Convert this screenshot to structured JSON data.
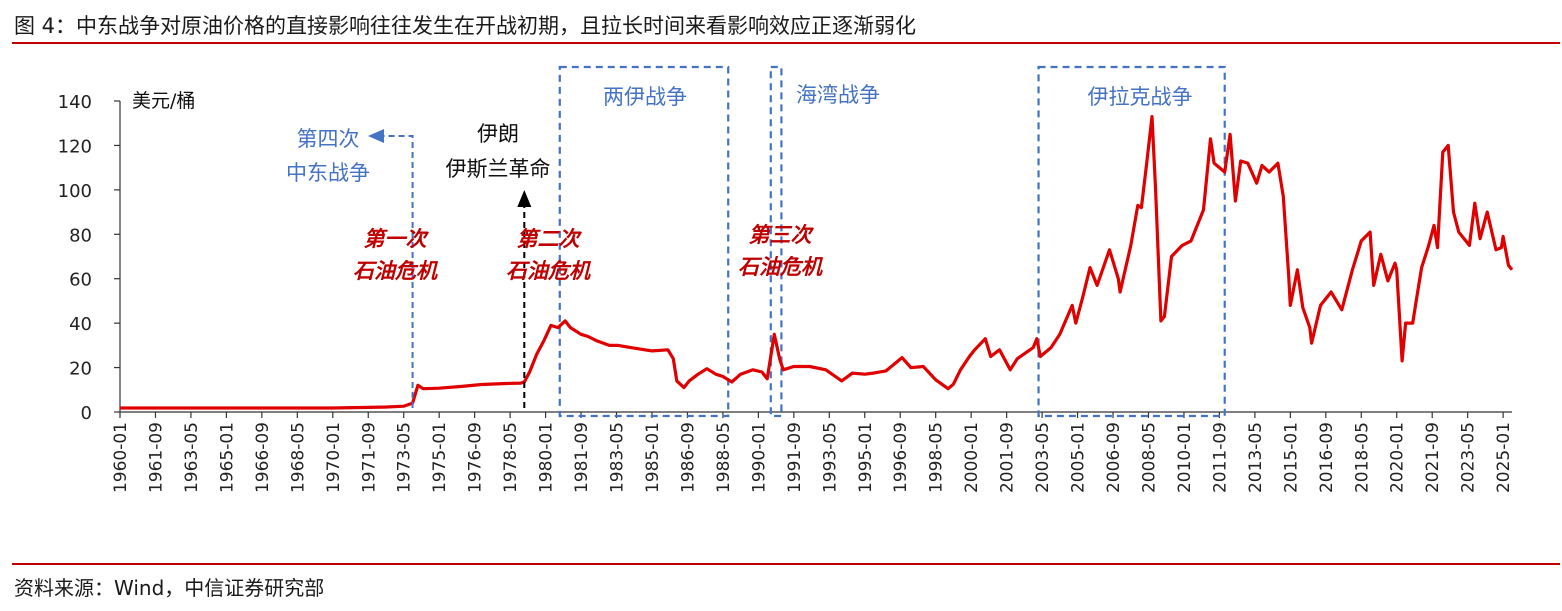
{
  "figure": {
    "title": "图 4：中东战争对原油价格的直接影响往往发生在开战初期，且拉长时间来看影响效应正逐渐弱化",
    "source": "资料来源：Wind，中信证券研究部"
  },
  "chart_data": {
    "type": "line",
    "unit_label": "美元/桶",
    "ylim": [
      0,
      140
    ],
    "yticks": [
      0,
      20,
      40,
      60,
      80,
      100,
      120,
      140
    ],
    "xlim": [
      "1960-01",
      "2025-06"
    ],
    "xtick_labels": [
      "1960-01",
      "1961-09",
      "1963-05",
      "1965-01",
      "1966-09",
      "1968-05",
      "1970-01",
      "1971-09",
      "1973-05",
      "1975-01",
      "1976-09",
      "1978-05",
      "1980-01",
      "1981-09",
      "1983-05",
      "1985-01",
      "1986-09",
      "1988-05",
      "1990-01",
      "1991-09",
      "1993-05",
      "1995-01",
      "1996-09",
      "1998-05",
      "2000-01",
      "2001-09",
      "2003-05",
      "2005-01",
      "2006-09",
      "2008-05",
      "2010-01",
      "2011-09",
      "2013-05",
      "2015-01",
      "2016-09",
      "2018-05",
      "2020-01",
      "2021-09",
      "2023-05",
      "2025-01"
    ],
    "grid": false,
    "legend": "none",
    "line_color": "#e00000",
    "series": [
      {
        "points": [
          [
            "1960-01",
            1.8
          ],
          [
            "1965-01",
            1.8
          ],
          [
            "1970-01",
            1.8
          ],
          [
            "1971-01",
            2.0
          ],
          [
            "1972-06",
            2.2
          ],
          [
            "1973-05",
            2.6
          ],
          [
            "1973-10",
            4.0
          ],
          [
            "1974-01",
            12.0
          ],
          [
            "1974-04",
            10.5
          ],
          [
            "1975-01",
            10.7
          ],
          [
            "1976-01",
            11.5
          ],
          [
            "1977-01",
            12.4
          ],
          [
            "1978-01",
            12.8
          ],
          [
            "1978-11",
            13.0
          ],
          [
            "1979-01",
            13.5
          ],
          [
            "1979-04",
            18.0
          ],
          [
            "1979-08",
            26.0
          ],
          [
            "1979-12",
            32.0
          ],
          [
            "1980-04",
            39.0
          ],
          [
            "1980-08",
            38.0
          ],
          [
            "1980-12",
            41.0
          ],
          [
            "1981-03",
            38.0
          ],
          [
            "1981-09",
            35.0
          ],
          [
            "1982-01",
            34.0
          ],
          [
            "1982-06",
            32.0
          ],
          [
            "1983-01",
            30.0
          ],
          [
            "1983-06",
            30.0
          ],
          [
            "1984-01",
            29.0
          ],
          [
            "1985-01",
            27.5
          ],
          [
            "1985-10",
            28.0
          ],
          [
            "1986-01",
            24.0
          ],
          [
            "1986-03",
            14.0
          ],
          [
            "1986-07",
            11.0
          ],
          [
            "1986-10",
            14.0
          ],
          [
            "1987-03",
            17.0
          ],
          [
            "1987-08",
            19.5
          ],
          [
            "1988-01",
            17.0
          ],
          [
            "1988-05",
            16.0
          ],
          [
            "1988-10",
            13.5
          ],
          [
            "1989-03",
            17.0
          ],
          [
            "1989-10",
            19.0
          ],
          [
            "1990-03",
            18.0
          ],
          [
            "1990-06",
            15.0
          ],
          [
            "1990-10",
            35.0
          ],
          [
            "1991-01",
            24.0
          ],
          [
            "1991-03",
            19.0
          ],
          [
            "1991-09",
            20.5
          ],
          [
            "1992-06",
            20.5
          ],
          [
            "1993-03",
            19.0
          ],
          [
            "1993-12",
            14.0
          ],
          [
            "1994-06",
            17.5
          ],
          [
            "1995-01",
            17.0
          ],
          [
            "1995-06",
            17.5
          ],
          [
            "1996-01",
            18.5
          ],
          [
            "1996-10",
            24.5
          ],
          [
            "1997-03",
            20.0
          ],
          [
            "1997-10",
            20.5
          ],
          [
            "1998-05",
            14.5
          ],
          [
            "1998-12",
            10.5
          ],
          [
            "1999-03",
            12.5
          ],
          [
            "1999-07",
            19.0
          ],
          [
            "1999-12",
            25.0
          ],
          [
            "2000-03",
            28.0
          ],
          [
            "2000-09",
            33.0
          ],
          [
            "2000-12",
            25.0
          ],
          [
            "2001-05",
            28.0
          ],
          [
            "2001-11",
            19.0
          ],
          [
            "2002-03",
            24.0
          ],
          [
            "2002-12",
            29.0
          ],
          [
            "2003-02",
            33.0
          ],
          [
            "2003-04",
            25.0
          ],
          [
            "2003-10",
            29.0
          ],
          [
            "2004-03",
            35.0
          ],
          [
            "2004-10",
            48.0
          ],
          [
            "2004-12",
            40.0
          ],
          [
            "2005-04",
            52.0
          ],
          [
            "2005-08",
            65.0
          ],
          [
            "2005-12",
            57.0
          ],
          [
            "2006-07",
            73.0
          ],
          [
            "2006-12",
            60.0
          ],
          [
            "2007-01",
            54.0
          ],
          [
            "2007-07",
            75.0
          ],
          [
            "2007-11",
            93.0
          ],
          [
            "2008-01",
            92.0
          ],
          [
            "2008-04",
            112.0
          ],
          [
            "2008-07",
            133.0
          ],
          [
            "2008-09",
            100.0
          ],
          [
            "2008-12",
            41.0
          ],
          [
            "2009-02",
            43.0
          ],
          [
            "2009-06",
            70.0
          ],
          [
            "2009-12",
            75.0
          ],
          [
            "2010-05",
            77.0
          ],
          [
            "2010-12",
            91.0
          ],
          [
            "2011-04",
            123.0
          ],
          [
            "2011-06",
            112.0
          ],
          [
            "2011-09",
            110.0
          ],
          [
            "2011-12",
            108.0
          ],
          [
            "2012-03",
            125.0
          ],
          [
            "2012-06",
            95.0
          ],
          [
            "2012-09",
            113.0
          ],
          [
            "2013-01",
            112.0
          ],
          [
            "2013-06",
            103.0
          ],
          [
            "2013-09",
            111.0
          ],
          [
            "2014-01",
            108.0
          ],
          [
            "2014-06",
            112.0
          ],
          [
            "2014-09",
            97.0
          ],
          [
            "2014-12",
            62.0
          ],
          [
            "2015-01",
            48.0
          ],
          [
            "2015-05",
            64.0
          ],
          [
            "2015-08",
            47.0
          ],
          [
            "2015-12",
            38.0
          ],
          [
            "2016-01",
            31.0
          ],
          [
            "2016-06",
            48.0
          ],
          [
            "2016-12",
            54.0
          ],
          [
            "2017-06",
            46.0
          ],
          [
            "2017-12",
            64.0
          ],
          [
            "2018-05",
            77.0
          ],
          [
            "2018-10",
            81.0
          ],
          [
            "2018-12",
            57.0
          ],
          [
            "2019-04",
            71.0
          ],
          [
            "2019-08",
            59.0
          ],
          [
            "2019-12",
            67.0
          ],
          [
            "2020-01",
            64.0
          ],
          [
            "2020-04",
            23.0
          ],
          [
            "2020-06",
            40.0
          ],
          [
            "2020-10",
            40.0
          ],
          [
            "2020-12",
            50.0
          ],
          [
            "2021-03",
            65.0
          ],
          [
            "2021-07",
            75.0
          ],
          [
            "2021-10",
            84.0
          ],
          [
            "2021-12",
            74.0
          ],
          [
            "2022-03",
            117.0
          ],
          [
            "2022-06",
            120.0
          ],
          [
            "2022-09",
            90.0
          ],
          [
            "2022-12",
            81.0
          ],
          [
            "2023-03",
            78.0
          ],
          [
            "2023-06",
            75.0
          ],
          [
            "2023-09",
            94.0
          ],
          [
            "2023-12",
            78.0
          ],
          [
            "2024-04",
            90.0
          ],
          [
            "2024-09",
            73.0
          ],
          [
            "2024-12",
            74.0
          ],
          [
            "2025-01",
            79.0
          ],
          [
            "2025-04",
            66.0
          ],
          [
            "2025-06",
            64.0
          ]
        ]
      }
    ],
    "annotations": [
      {
        "kind": "event_arrow",
        "text_lines": [
          "第四次",
          "中东战争"
        ],
        "at": "1973-10",
        "color": "#4472c4"
      },
      {
        "kind": "event_arrow",
        "text_lines": [
          "伊朗",
          "伊斯兰革命"
        ],
        "at": "1979-01",
        "color": "#000000"
      },
      {
        "kind": "war_period",
        "label": "两伊战争",
        "from": "1980-09",
        "to": "1988-08",
        "color": "#4472c4"
      },
      {
        "kind": "war_period",
        "label": "海湾战争",
        "from": "1990-08",
        "to": "1991-02",
        "color": "#4472c4"
      },
      {
        "kind": "war_period",
        "label": "伊拉克战争",
        "from": "2003-03",
        "to": "2011-12",
        "color": "#4472c4"
      },
      {
        "kind": "crisis_label",
        "text_lines": [
          "第一次",
          "石油危机"
        ],
        "color": "#c00000"
      },
      {
        "kind": "crisis_label",
        "text_lines": [
          "第二次",
          "石油危机"
        ],
        "color": "#c00000"
      },
      {
        "kind": "crisis_label",
        "text_lines": [
          "第三次",
          "石油危机"
        ],
        "color": "#c00000"
      }
    ]
  }
}
